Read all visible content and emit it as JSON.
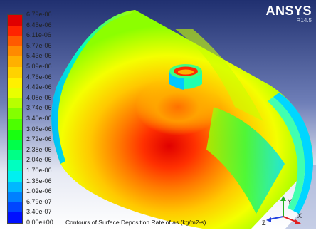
{
  "header": {
    "brand": "ANSYS",
    "version": "R14.5"
  },
  "legend": {
    "labels": [
      "6.79e-06",
      "6.45e-06",
      "6.11e-06",
      "5.77e-06",
      "5.43e-06",
      "5.09e-06",
      "4.76e-06",
      "4.42e-06",
      "4.08e-06",
      "3.74e-06",
      "3.40e-06",
      "3.06e-06",
      "2.72e-06",
      "2.38e-06",
      "2.04e-06",
      "1.70e-06",
      "1.36e-06",
      "1.02e-06",
      "6.79e-07",
      "3.40e-07",
      "0.00e+00"
    ],
    "colors": [
      "#e00000",
      "#ff2400",
      "#ff5a00",
      "#ff8a00",
      "#ffb000",
      "#ffd200",
      "#fff000",
      "#e8ff00",
      "#b8ff00",
      "#84ff00",
      "#4cff00",
      "#18ff10",
      "#00ff4a",
      "#00ff86",
      "#00ffc0",
      "#00f0f0",
      "#00b8ff",
      "#0080ff",
      "#0046ff",
      "#0010ff"
    ]
  },
  "caption": "Contours of Surface Deposition Rate of as (kg/m2-s)",
  "axes": {
    "x_label": "X",
    "y_label": "Y",
    "z_label": "Z",
    "colors": {
      "x": "#e02020",
      "y": "#20b020",
      "z": "#2040e0"
    }
  },
  "viewport": {
    "background_top": "#1c2e70",
    "background_bottom": "#ffffff"
  }
}
